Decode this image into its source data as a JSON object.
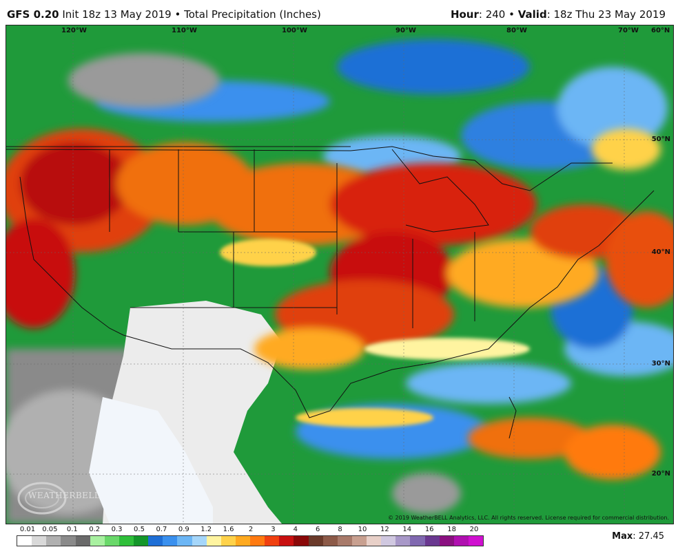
{
  "header": {
    "model": "GFS 0.20",
    "init": "Init 18z 13 May 2019",
    "bullet": "•",
    "product": "Total Precipitation (Inches)",
    "hour_label": "Hour",
    "hour_value": ": 240",
    "valid_label": "Valid",
    "valid_value": ": 18z Thu 23 May 2019"
  },
  "map": {
    "longitude_labels": [
      "120°W",
      "110°W",
      "100°W",
      "90°W",
      "80°W",
      "70°W",
      "60°N"
    ],
    "latitude_labels": [
      "50°N",
      "40°N",
      "30°N",
      "20°N"
    ],
    "copyright": "© 2019 WeatherBELL Analytics, LLC. All rights reserved. License required for commercial distribution.",
    "logo_text": "WEATHERBELL"
  },
  "legend": {
    "labels": [
      "0.01",
      "0.05",
      "0.1",
      "0.2",
      "0.3",
      "0.5",
      "0.7",
      "0.9",
      "1.2",
      "1.6",
      "2",
      "3",
      "4",
      "6",
      "8",
      "10",
      "12",
      "14",
      "16",
      "18",
      "20"
    ],
    "colors": [
      "#ffffff",
      "#d9d9d9",
      "#b0b0b0",
      "#8a8a8a",
      "#6a6a6a",
      "#a8f0a0",
      "#6ad86a",
      "#2fbf3a",
      "#14962a",
      "#1f6fd6",
      "#3a90ee",
      "#6cb6f5",
      "#a5d6fa",
      "#fff4a0",
      "#ffd24a",
      "#ffaa20",
      "#ff7a10",
      "#f04010",
      "#c81010",
      "#8a0808",
      "#6a3a2a",
      "#8c5a48",
      "#a87a6a",
      "#c8a090",
      "#e8d0c8",
      "#d0c8e0",
      "#a898c8",
      "#8068b0",
      "#6a3890",
      "#8a1080",
      "#b010b0",
      "#d010d0"
    ]
  },
  "max": {
    "label": "Max",
    "value": ": 27.45"
  },
  "colors": {
    "green": "#1f9a3a",
    "red": "#c81818",
    "orange": "#f07010",
    "blue": "#1f6fd6",
    "gray": "#9a9a9a",
    "landGray": "#e8e8e8",
    "sea": "#eef4fb"
  }
}
